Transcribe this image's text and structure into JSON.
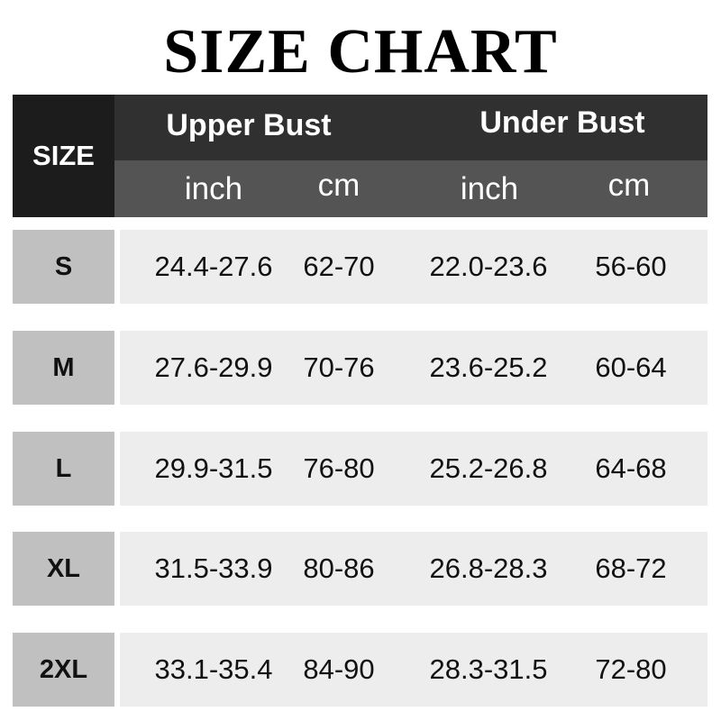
{
  "title": "SIZE CHART",
  "header": {
    "size": "SIZE",
    "groups": [
      "Upper Bust",
      "Under Bust"
    ],
    "units": [
      "inch",
      "cm",
      "inch",
      "cm"
    ]
  },
  "rows": [
    {
      "size": "S",
      "values": [
        "24.4-27.6",
        "62-70",
        "22.0-23.6",
        "56-60"
      ]
    },
    {
      "size": "M",
      "values": [
        "27.6-29.9",
        "70-76",
        "23.6-25.2",
        "60-64"
      ]
    },
    {
      "size": "L",
      "values": [
        "29.9-31.5",
        "76-80",
        "25.2-26.8",
        "64-68"
      ]
    },
    {
      "size": "XL",
      "values": [
        "31.5-33.9",
        "80-86",
        "26.8-28.3",
        "68-72"
      ]
    },
    {
      "size": "2XL",
      "values": [
        "33.1-35.4",
        "84-90",
        "28.3-31.5",
        "72-80"
      ]
    }
  ]
}
